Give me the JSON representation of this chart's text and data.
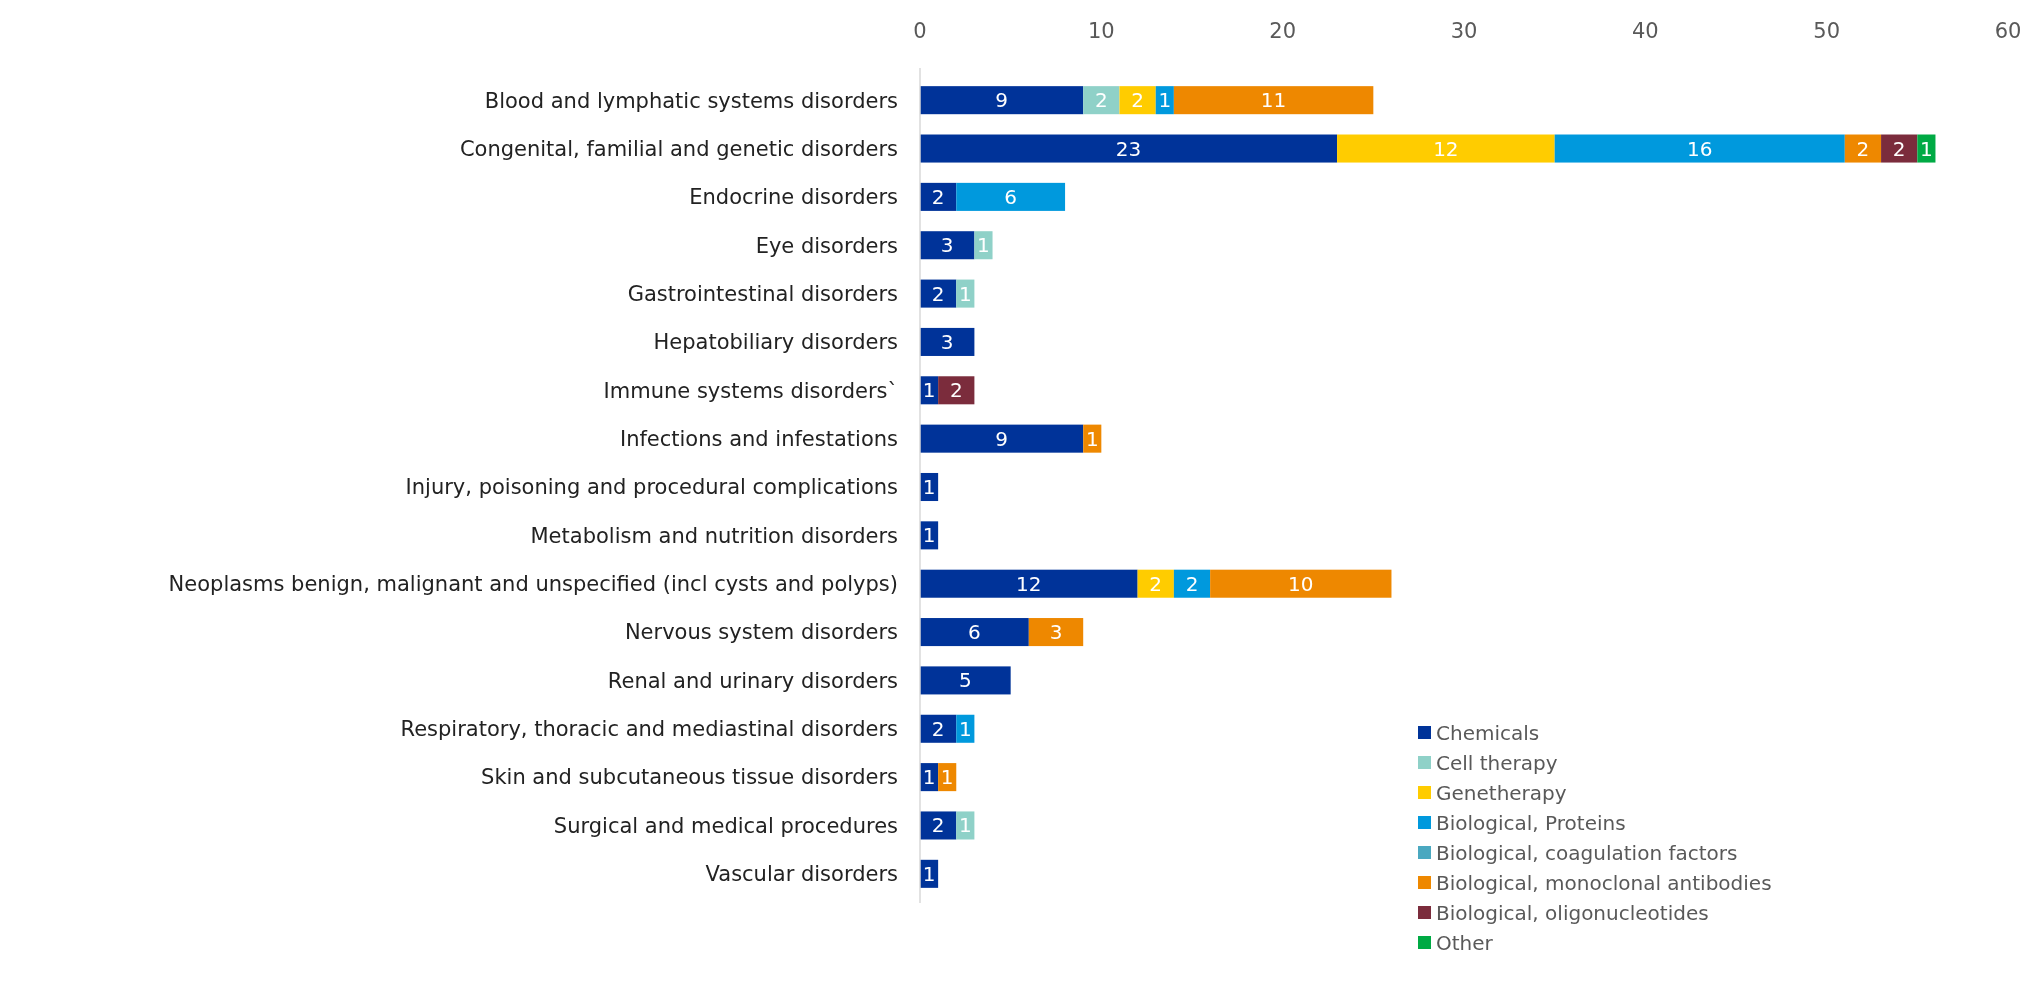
{
  "chart_data": {
    "type": "bar",
    "orientation": "horizontal",
    "stacked": true,
    "data_labels": true,
    "legend": "bottom right",
    "grid": false,
    "categories": [
      "Blood and lymphatic systems disorders",
      "Congenital, familial and genetic disorders",
      "Endocrine disorders",
      "Eye disorders",
      "Gastrointestinal disorders",
      "Hepatobiliary disorders",
      "Immune systems disorders`",
      "Infections and infestations",
      "Injury, poisoning and procedural complications",
      "Metabolism and nutrition disorders",
      "Neoplasms benign, malignant and unspecified (incl cysts and polyps)",
      "Nervous system disorders",
      "Renal and urinary disorders",
      "Respiratory, thoracic and mediastinal disorders",
      "Skin and subcutaneous tissue disorders",
      "Surgical and medical procedures",
      "Vascular disorders"
    ],
    "xlim": [
      0,
      60
    ],
    "xticks": [
      0,
      10,
      20,
      30,
      40,
      50,
      60
    ],
    "series": [
      {
        "name": "Chemicals",
        "color": "#003399",
        "values": [
          9,
          23,
          2,
          3,
          2,
          3,
          1,
          9,
          1,
          1,
          12,
          6,
          5,
          2,
          1,
          2,
          1
        ]
      },
      {
        "name": "Cell therapy",
        "color": "#8fd1c8",
        "values": [
          2,
          null,
          null,
          1,
          1,
          null,
          null,
          null,
          null,
          null,
          null,
          null,
          null,
          null,
          null,
          1,
          null
        ]
      },
      {
        "name": "Genetherapy",
        "color": "#ffcc00",
        "values": [
          2,
          12,
          null,
          null,
          null,
          null,
          null,
          null,
          null,
          null,
          2,
          null,
          null,
          null,
          null,
          null,
          null
        ]
      },
      {
        "name": "Biological, Proteins",
        "color": "#0099dd",
        "values": [
          1,
          16,
          6,
          null,
          null,
          null,
          null,
          null,
          null,
          null,
          2,
          null,
          null,
          1,
          null,
          null,
          null
        ]
      },
      {
        "name": "Biological, coagulation factors",
        "color": "#4aa8c0",
        "values": [
          null,
          null,
          null,
          null,
          null,
          null,
          null,
          null,
          null,
          null,
          null,
          null,
          null,
          null,
          null,
          null,
          null
        ]
      },
      {
        "name": "Biological, monoclonal antibodies",
        "color": "#ee8800",
        "values": [
          11,
          2,
          null,
          null,
          null,
          null,
          null,
          1,
          null,
          null,
          10,
          3,
          null,
          null,
          1,
          null,
          null
        ]
      },
      {
        "name": "Biological, oligonucleotides",
        "color": "#7b2c3c",
        "values": [
          null,
          2,
          null,
          null,
          null,
          null,
          2,
          null,
          null,
          null,
          null,
          null,
          null,
          null,
          null,
          null,
          null
        ]
      },
      {
        "name": "Other",
        "color": "#00aa44",
        "values": [
          null,
          1,
          null,
          null,
          null,
          null,
          null,
          null,
          null,
          null,
          null,
          null,
          null,
          null,
          null,
          null,
          null
        ]
      }
    ]
  }
}
